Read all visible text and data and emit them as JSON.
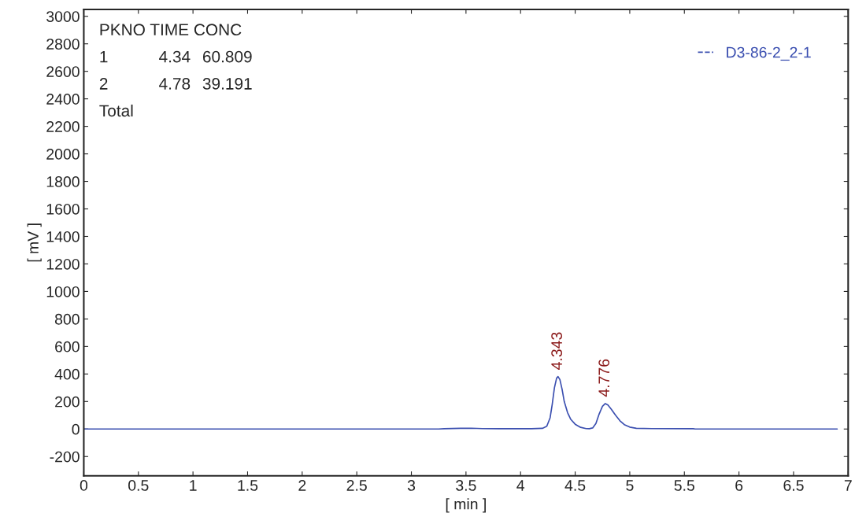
{
  "chart_data": {
    "type": "line",
    "xlabel": "[ min ]",
    "ylabel": "[ mV ]",
    "x": [
      0,
      3.25,
      3.3,
      3.45,
      3.55,
      3.65,
      3.8,
      4.1,
      4.2,
      4.24,
      4.27,
      4.29,
      4.31,
      4.33,
      4.343,
      4.36,
      4.38,
      4.4,
      4.43,
      4.46,
      4.5,
      4.55,
      4.6,
      4.63,
      4.66,
      4.69,
      4.72,
      4.75,
      4.776,
      4.8,
      4.83,
      4.87,
      4.91,
      4.95,
      5.0,
      5.06,
      5.2,
      5.58,
      5.6,
      6.9
    ],
    "series": [
      {
        "name": "D3-86-2_2-1",
        "color": "#3b4fb0",
        "values": [
          0,
          0,
          2,
          5,
          6,
          3,
          2,
          2,
          5,
          20,
          80,
          180,
          300,
          370,
          381,
          360,
          290,
          200,
          120,
          70,
          35,
          12,
          3,
          2,
          8,
          40,
          110,
          165,
          185,
          175,
          145,
          100,
          60,
          32,
          14,
          5,
          3,
          2,
          0,
          0
        ]
      }
    ],
    "annotations": [
      "PKNO TIME CONC",
      "1 4.34 60.809",
      "2 4.78 39.191",
      "Total",
      {
        "text": "4.343",
        "x": 4.343,
        "y": 381
      },
      {
        "text": "4.776",
        "x": 4.776,
        "y": 185
      }
    ],
    "xlim": [
      0,
      7
    ],
    "xticks": [
      0,
      0.5,
      1,
      1.5,
      2,
      2.5,
      3,
      3.5,
      4,
      4.5,
      5,
      5.5,
      6,
      6.5,
      7
    ],
    "ylim": [
      -340,
      3050
    ],
    "yticks": [
      -200,
      0,
      200,
      400,
      600,
      800,
      1000,
      1200,
      1400,
      1600,
      1800,
      2000,
      2200,
      2400,
      2600,
      2800,
      3000
    ],
    "grid": false,
    "legend": "top right",
    "marker": "none",
    "line_style": "solid"
  }
}
